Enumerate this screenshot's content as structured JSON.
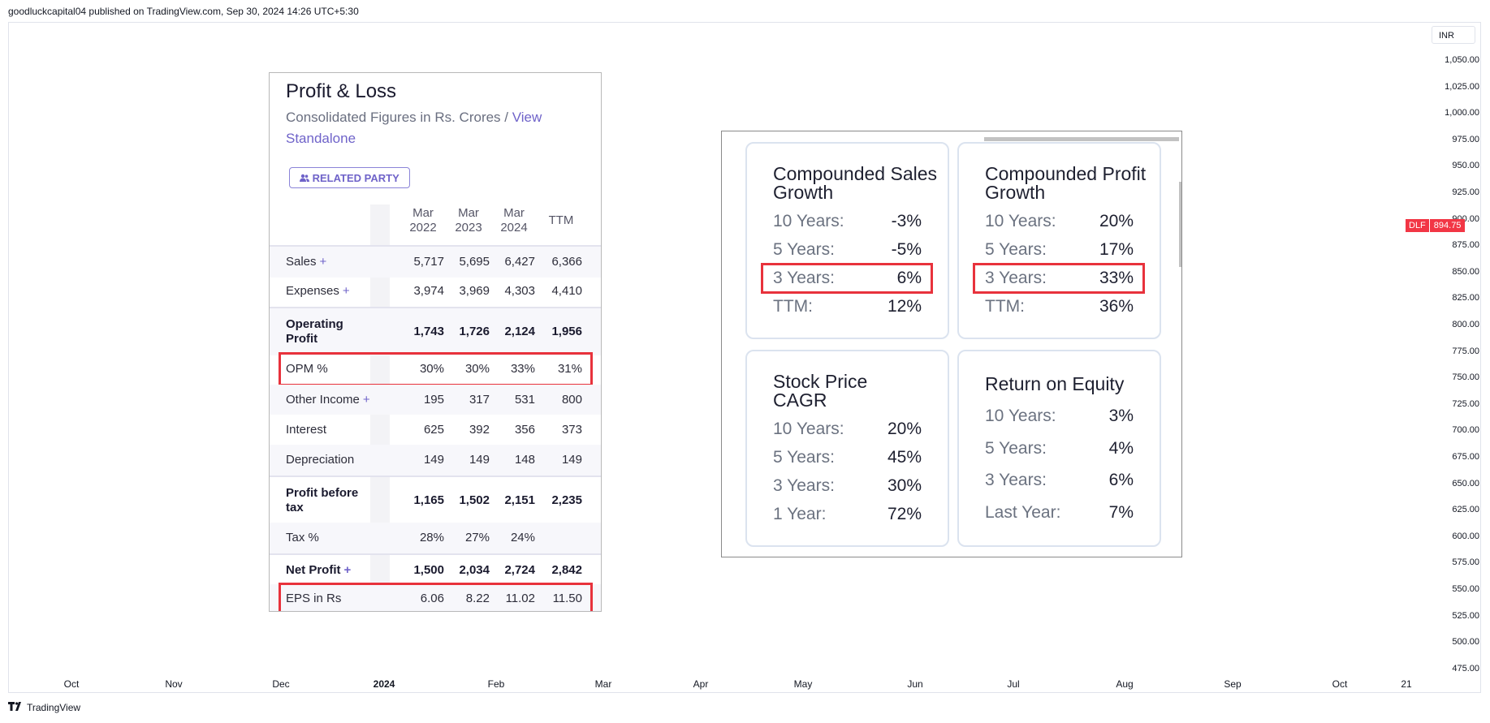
{
  "header": {
    "text": "goodluckcapital04 published on TradingView.com, Sep 30, 2024 14:26 UTC+5:30"
  },
  "price_scale": {
    "currency": "INR",
    "ticks": [
      "1,050.00",
      "1,025.00",
      "1,000.00",
      "975.00",
      "950.00",
      "925.00",
      "900.00",
      "875.00",
      "850.00",
      "825.00",
      "800.00",
      "775.00",
      "750.00",
      "725.00",
      "700.00",
      "675.00",
      "650.00",
      "625.00",
      "600.00",
      "575.00",
      "550.00",
      "525.00",
      "500.00",
      "475.00"
    ],
    "symbol": "DLF",
    "last_price": "894.75",
    "badge_color": "#f23645"
  },
  "time_axis": {
    "ticks": [
      {
        "label": "Oct",
        "bold": false
      },
      {
        "label": "Nov",
        "bold": false
      },
      {
        "label": "Dec",
        "bold": false
      },
      {
        "label": "2024",
        "bold": true
      },
      {
        "label": "Feb",
        "bold": false
      },
      {
        "label": "Mar",
        "bold": false
      },
      {
        "label": "Apr",
        "bold": false
      },
      {
        "label": "May",
        "bold": false
      },
      {
        "label": "Jun",
        "bold": false
      },
      {
        "label": "Jul",
        "bold": false
      },
      {
        "label": "Aug",
        "bold": false
      },
      {
        "label": "Sep",
        "bold": false
      },
      {
        "label": "Oct",
        "bold": false
      },
      {
        "label": "21",
        "bold": false
      }
    ]
  },
  "footer": {
    "logo_icon": "tradingview-logo-icon",
    "brand": "TradingView"
  },
  "profit_loss": {
    "title": "Profit & Loss",
    "subtitle": "Consolidated Figures in Rs. Crores / ",
    "subtitle_link": "View Standalone",
    "related_party_button": "RELATED PARTY",
    "related_party_icon": "users-icon",
    "columns": [
      {
        "line1": "Mar",
        "line2": "2022"
      },
      {
        "line1": "Mar",
        "line2": "2023"
      },
      {
        "line1": "Mar",
        "line2": "2024"
      },
      {
        "line1": "TTM",
        "line2": ""
      }
    ],
    "rows": [
      {
        "label": "Sales",
        "plus": "+",
        "values": [
          "5,717",
          "5,695",
          "6,427",
          "6,366"
        ],
        "bold": false,
        "highlight": false
      },
      {
        "label": "Expenses",
        "plus": "+",
        "values": [
          "3,974",
          "3,969",
          "4,303",
          "4,410"
        ],
        "bold": false,
        "highlight": false
      },
      {
        "label": "Operating Profit",
        "plus": "",
        "values": [
          "1,743",
          "1,726",
          "2,124",
          "1,956"
        ],
        "bold": true,
        "highlight": false
      },
      {
        "label": "OPM %",
        "plus": "",
        "values": [
          "30%",
          "30%",
          "33%",
          "31%"
        ],
        "bold": false,
        "highlight": true
      },
      {
        "label": "Other Income",
        "plus": "+",
        "values": [
          "195",
          "317",
          "531",
          "800"
        ],
        "bold": false,
        "highlight": false
      },
      {
        "label": "Interest",
        "plus": "",
        "values": [
          "625",
          "392",
          "356",
          "373"
        ],
        "bold": false,
        "highlight": false
      },
      {
        "label": "Depreciation",
        "plus": "",
        "values": [
          "149",
          "149",
          "148",
          "149"
        ],
        "bold": false,
        "highlight": false
      },
      {
        "label": "Profit before tax",
        "plus": "",
        "values": [
          "1,165",
          "1,502",
          "2,151",
          "2,235"
        ],
        "bold": true,
        "highlight": false
      },
      {
        "label": "Tax %",
        "plus": "",
        "values": [
          "28%",
          "27%",
          "24%",
          ""
        ],
        "bold": false,
        "highlight": false
      },
      {
        "label": "Net Profit",
        "plus": "+",
        "values": [
          "1,500",
          "2,034",
          "2,724",
          "2,842"
        ],
        "bold": true,
        "highlight": false
      },
      {
        "label": "EPS in Rs",
        "plus": "",
        "values": [
          "6.06",
          "8.22",
          "11.02",
          "11.50"
        ],
        "bold": false,
        "highlight": true
      }
    ]
  },
  "growth": {
    "cards": [
      {
        "title": "Compounded Sales Growth",
        "rows": [
          {
            "k": "10 Years:",
            "v": "-3%"
          },
          {
            "k": "5 Years:",
            "v": "-5%"
          },
          {
            "k": "3 Years:",
            "v": "6%",
            "highlight": true
          },
          {
            "k": "TTM:",
            "v": "12%"
          }
        ]
      },
      {
        "title": "Compounded Profit Growth",
        "rows": [
          {
            "k": "10 Years:",
            "v": "20%"
          },
          {
            "k": "5 Years:",
            "v": "17%"
          },
          {
            "k": "3 Years:",
            "v": "33%",
            "highlight": true
          },
          {
            "k": "TTM:",
            "v": "36%"
          }
        ]
      },
      {
        "title": "Stock Price CAGR",
        "rows": [
          {
            "k": "10 Years:",
            "v": "20%"
          },
          {
            "k": "5 Years:",
            "v": "45%"
          },
          {
            "k": "3 Years:",
            "v": "30%"
          },
          {
            "k": "1 Year:",
            "v": "72%"
          }
        ]
      },
      {
        "title": "Return on Equity",
        "rows": [
          {
            "k": "10 Years:",
            "v": "3%"
          },
          {
            "k": "5 Years:",
            "v": "4%"
          },
          {
            "k": "3 Years:",
            "v": "6%"
          },
          {
            "k": "Last Year:",
            "v": "7%"
          }
        ]
      }
    ],
    "highlight_color": "#e8323c"
  }
}
